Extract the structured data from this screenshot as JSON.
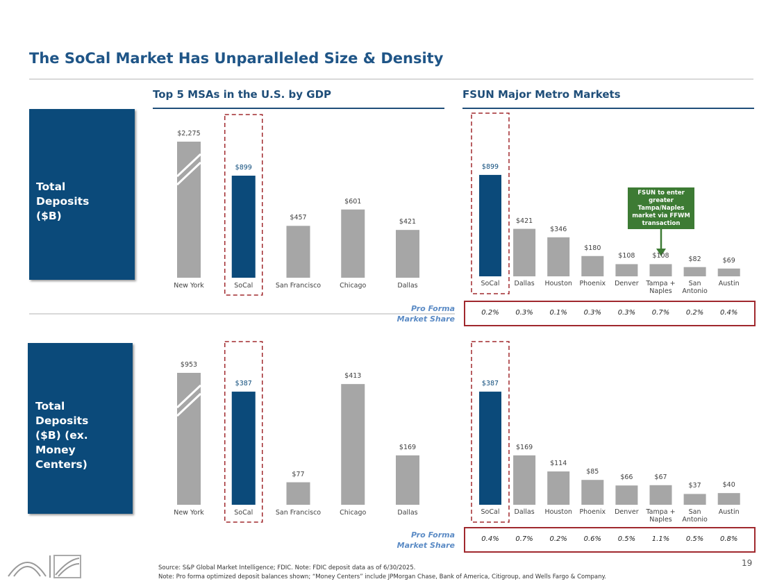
{
  "title": "The SoCal Market Has Unparalleled Size & Density",
  "column_headers": [
    "Top 5 MSAs in the U.S. by GDP",
    "FSUN Major Metro Markets"
  ],
  "row_labels": [
    "Total Deposits ($B)",
    "Total Deposits ($B) (ex. Money Centers)"
  ],
  "chart_data": [
    {
      "type": "bar",
      "categories": [
        "New York",
        "SoCal",
        "San Francisco",
        "Chicago",
        "Dallas"
      ],
      "values": [
        2275,
        899,
        457,
        601,
        421
      ],
      "value_labels": [
        "$2,275",
        "$899",
        "$457",
        "$601",
        "$421"
      ],
      "colors": [
        "#a6a6a6",
        "#0b4a7a",
        "#a6a6a6",
        "#a6a6a6",
        "#a6a6a6"
      ],
      "axis_break": "New York"
    },
    {
      "type": "bar",
      "categories": [
        "SoCal",
        "Dallas",
        "Houston",
        "Phoenix",
        "Denver",
        "Tampa + Naples",
        "San Antonio",
        "Austin"
      ],
      "values": [
        899,
        421,
        346,
        180,
        108,
        108,
        82,
        69
      ],
      "value_labels": [
        "$899",
        "$421",
        "$346",
        "$180",
        "$108",
        "$108",
        "$82",
        "$69"
      ],
      "colors": [
        "#0b4a7a",
        "#a6a6a6",
        "#a6a6a6",
        "#a6a6a6",
        "#a6a6a6",
        "#a6a6a6",
        "#a6a6a6",
        "#a6a6a6"
      ],
      "annotation": "FSUN to enter greater Tampa/Naples market via FFWM transaction",
      "market_share_label": "Pro Forma Market Share",
      "market_share": [
        "0.2%",
        "0.3%",
        "0.1%",
        "0.3%",
        "0.3%",
        "0.7%",
        "0.2%",
        "0.4%"
      ]
    },
    {
      "type": "bar",
      "categories": [
        "New York",
        "SoCal",
        "San Francisco",
        "Chicago",
        "Dallas"
      ],
      "values": [
        953,
        387,
        77,
        413,
        169
      ],
      "value_labels": [
        "$953",
        "$387",
        "$77",
        "$413",
        "$169"
      ],
      "colors": [
        "#a6a6a6",
        "#0b4a7a",
        "#a6a6a6",
        "#a6a6a6",
        "#a6a6a6"
      ],
      "axis_break": "New York"
    },
    {
      "type": "bar",
      "categories": [
        "SoCal",
        "Dallas",
        "Houston",
        "Phoenix",
        "Denver",
        "Tampa + Naples",
        "San Antonio",
        "Austin"
      ],
      "values": [
        387,
        169,
        114,
        85,
        66,
        67,
        37,
        40
      ],
      "value_labels": [
        "$387",
        "$169",
        "$114",
        "$85",
        "$66",
        "$67",
        "$37",
        "$40"
      ],
      "colors": [
        "#0b4a7a",
        "#a6a6a6",
        "#a6a6a6",
        "#a6a6a6",
        "#a6a6a6",
        "#a6a6a6",
        "#a6a6a6",
        "#a6a6a6"
      ],
      "market_share_label": "Pro Forma Market Share",
      "market_share": [
        "0.4%",
        "0.7%",
        "0.2%",
        "0.6%",
        "0.5%",
        "1.1%",
        "0.5%",
        "0.8%"
      ]
    }
  ],
  "source": "Source: S&P Global Market Intelligence; FDIC. Note: FDIC deposit data as of 6/30/2025.",
  "note": "Note: Pro forma optimized deposit balances shown; “Money Centers” include JPMorgan Chase, Bank of America, Citigroup, and Wells Fargo & Company.",
  "page_number": "19"
}
